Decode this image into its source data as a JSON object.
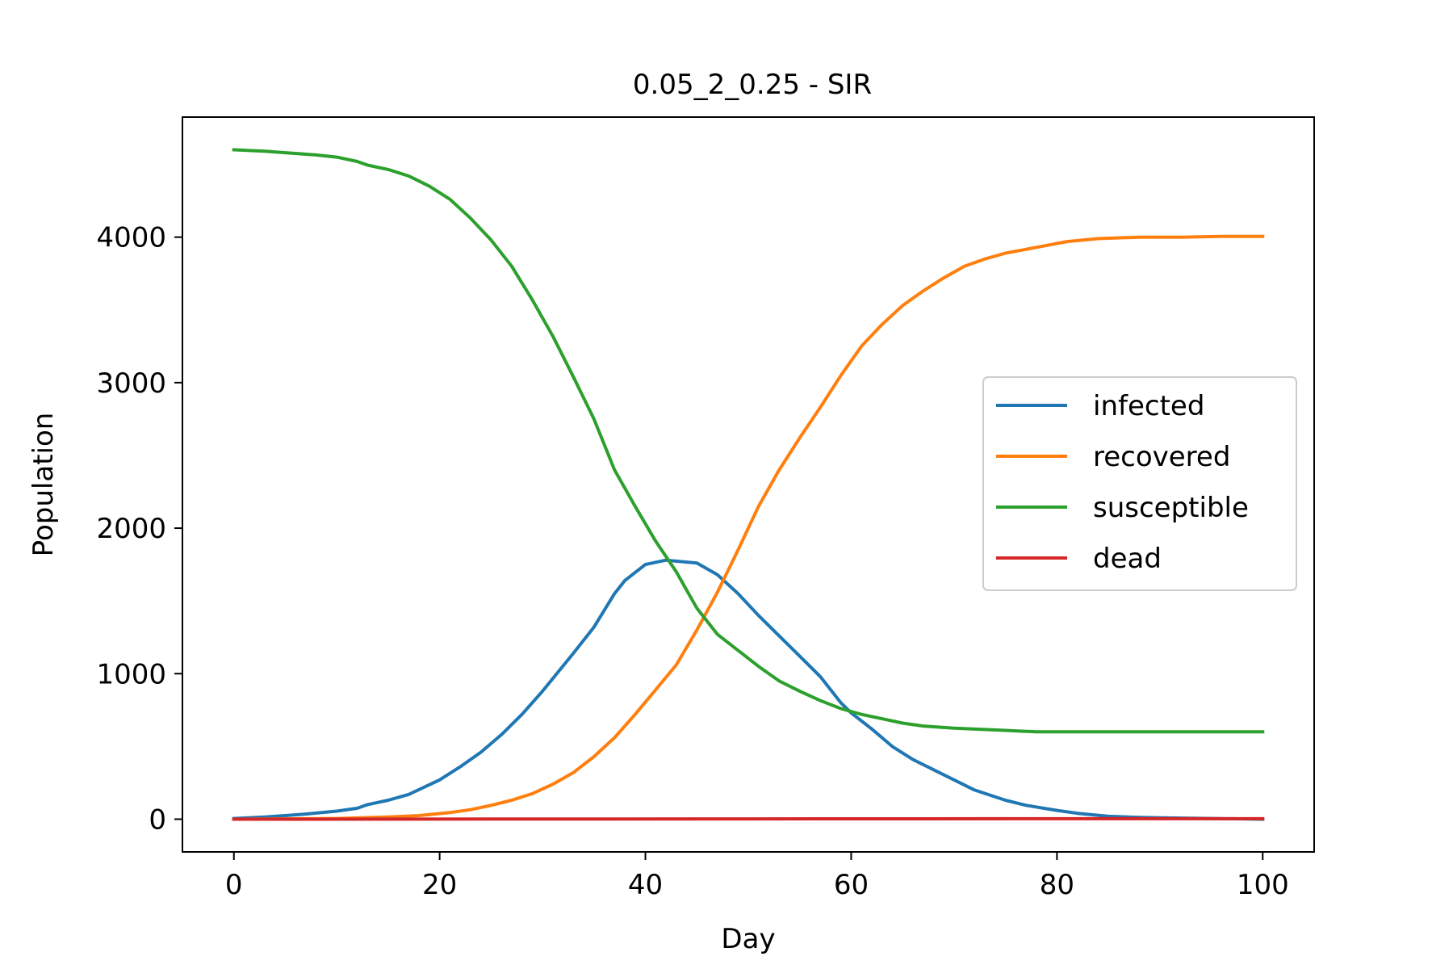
{
  "chart_data": {
    "type": "line",
    "title": "0.05_2_0.25 - SIR",
    "xlabel": "Day",
    "ylabel": "Population",
    "xlim": [
      -5,
      105
    ],
    "ylim": [
      -225,
      4825
    ],
    "xticks": [
      0,
      20,
      40,
      60,
      80,
      100
    ],
    "yticks": [
      0,
      1000,
      2000,
      3000,
      4000
    ],
    "grid": false,
    "legend_position": "center-right",
    "series": [
      {
        "name": "infected",
        "color": "#1f77b4",
        "points": [
          [
            0,
            5
          ],
          [
            3,
            15
          ],
          [
            5,
            25
          ],
          [
            7,
            35
          ],
          [
            10,
            55
          ],
          [
            12,
            75
          ],
          [
            13,
            100
          ],
          [
            15,
            130
          ],
          [
            17,
            170
          ],
          [
            20,
            270
          ],
          [
            22,
            360
          ],
          [
            24,
            460
          ],
          [
            26,
            580
          ],
          [
            28,
            720
          ],
          [
            30,
            880
          ],
          [
            33,
            1140
          ],
          [
            35,
            1320
          ],
          [
            37,
            1550
          ],
          [
            38,
            1640
          ],
          [
            40,
            1750
          ],
          [
            42,
            1780
          ],
          [
            45,
            1760
          ],
          [
            47,
            1680
          ],
          [
            49,
            1550
          ],
          [
            51,
            1400
          ],
          [
            53,
            1260
          ],
          [
            55,
            1120
          ],
          [
            57,
            980
          ],
          [
            59,
            800
          ],
          [
            60,
            730
          ],
          [
            62,
            620
          ],
          [
            64,
            500
          ],
          [
            66,
            410
          ],
          [
            68,
            340
          ],
          [
            70,
            270
          ],
          [
            72,
            200
          ],
          [
            75,
            130
          ],
          [
            77,
            95
          ],
          [
            80,
            60
          ],
          [
            82,
            40
          ],
          [
            85,
            20
          ],
          [
            88,
            12
          ],
          [
            90,
            10
          ],
          [
            95,
            5
          ],
          [
            100,
            0
          ]
        ]
      },
      {
        "name": "recovered",
        "color": "#ff7f0e",
        "points": [
          [
            0,
            0
          ],
          [
            10,
            5
          ],
          [
            15,
            15
          ],
          [
            18,
            25
          ],
          [
            21,
            45
          ],
          [
            23,
            65
          ],
          [
            25,
            95
          ],
          [
            27,
            130
          ],
          [
            29,
            175
          ],
          [
            31,
            240
          ],
          [
            33,
            320
          ],
          [
            35,
            430
          ],
          [
            37,
            560
          ],
          [
            39,
            720
          ],
          [
            41,
            890
          ],
          [
            43,
            1060
          ],
          [
            45,
            1300
          ],
          [
            47,
            1560
          ],
          [
            49,
            1850
          ],
          [
            51,
            2150
          ],
          [
            53,
            2400
          ],
          [
            55,
            2620
          ],
          [
            57,
            2830
          ],
          [
            59,
            3050
          ],
          [
            61,
            3250
          ],
          [
            63,
            3400
          ],
          [
            65,
            3530
          ],
          [
            67,
            3630
          ],
          [
            69,
            3720
          ],
          [
            71,
            3800
          ],
          [
            73,
            3850
          ],
          [
            75,
            3890
          ],
          [
            78,
            3930
          ],
          [
            81,
            3970
          ],
          [
            84,
            3990
          ],
          [
            88,
            4000
          ],
          [
            92,
            4000
          ],
          [
            96,
            4005
          ],
          [
            100,
            4005
          ]
        ]
      },
      {
        "name": "susceptible",
        "color": "#2ca02c",
        "points": [
          [
            0,
            4600
          ],
          [
            3,
            4590
          ],
          [
            5,
            4580
          ],
          [
            8,
            4565
          ],
          [
            10,
            4550
          ],
          [
            12,
            4520
          ],
          [
            13,
            4495
          ],
          [
            15,
            4465
          ],
          [
            17,
            4420
          ],
          [
            19,
            4350
          ],
          [
            21,
            4260
          ],
          [
            23,
            4130
          ],
          [
            25,
            3980
          ],
          [
            27,
            3800
          ],
          [
            29,
            3570
          ],
          [
            31,
            3320
          ],
          [
            33,
            3040
          ],
          [
            35,
            2750
          ],
          [
            37,
            2400
          ],
          [
            39,
            2150
          ],
          [
            41,
            1910
          ],
          [
            43,
            1700
          ],
          [
            45,
            1450
          ],
          [
            47,
            1270
          ],
          [
            49,
            1160
          ],
          [
            51,
            1050
          ],
          [
            53,
            950
          ],
          [
            55,
            880
          ],
          [
            57,
            815
          ],
          [
            59,
            760
          ],
          [
            61,
            720
          ],
          [
            63,
            690
          ],
          [
            65,
            660
          ],
          [
            67,
            640
          ],
          [
            70,
            625
          ],
          [
            75,
            610
          ],
          [
            78,
            600
          ],
          [
            80,
            600
          ],
          [
            90,
            600
          ],
          [
            100,
            600
          ]
        ]
      },
      {
        "name": "dead",
        "color": "#d62728",
        "points": [
          [
            0,
            0
          ],
          [
            25,
            1
          ],
          [
            50,
            2
          ],
          [
            75,
            3
          ],
          [
            100,
            3
          ]
        ]
      }
    ]
  }
}
